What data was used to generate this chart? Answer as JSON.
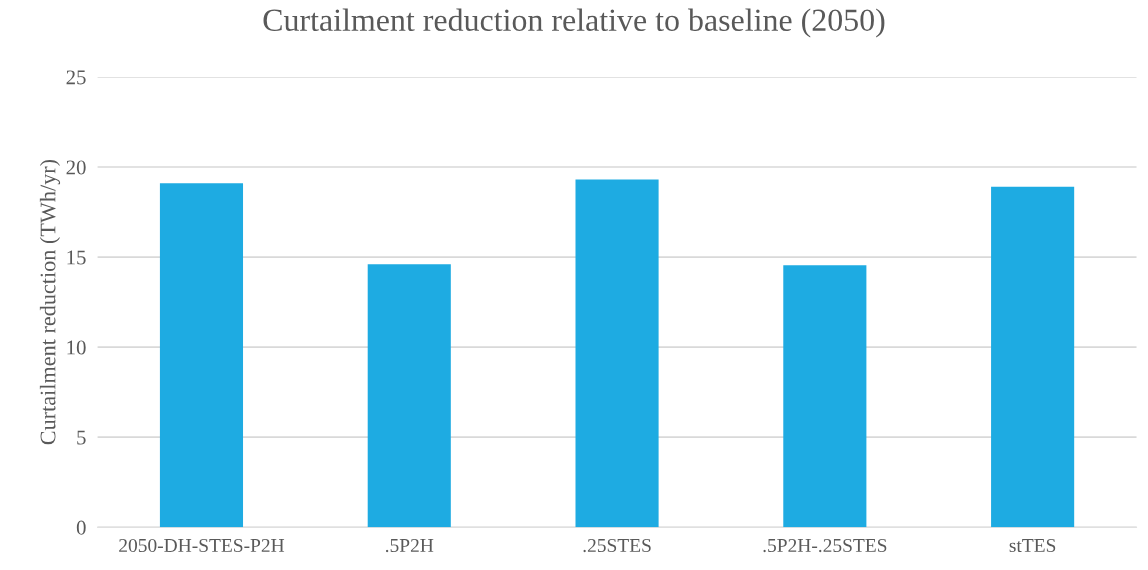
{
  "chart_data": {
    "type": "bar",
    "title": "Curtailment reduction relative to baseline (2050)",
    "ylabel": "Curtailment reduction (TWh/yr)",
    "categories": [
      "2050-DH-STES-P2H",
      ".5P2H",
      ".25STES",
      ".5P2H-.25STES",
      "stTES"
    ],
    "values": [
      19.1,
      14.6,
      19.3,
      14.55,
      18.9
    ],
    "color": "#1eabe2",
    "ylim": [
      0,
      25
    ],
    "yticks": [
      0,
      5,
      10,
      15,
      20,
      25
    ],
    "grid": "y",
    "legend": false
  }
}
